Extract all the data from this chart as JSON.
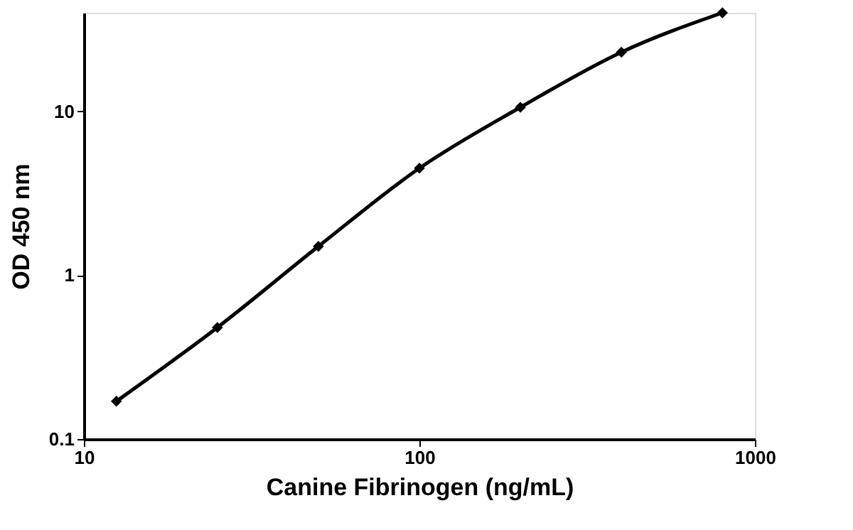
{
  "chart_data": {
    "type": "line",
    "xlabel": "Canine Fibrinogen (ng/mL)",
    "ylabel": "OD 450 nm",
    "log": "xy",
    "x": [
      12.5,
      25,
      50,
      100,
      200,
      400,
      800
    ],
    "series": [
      {
        "color": "#000000",
        "values": [
          0.17,
          0.48,
          1.5,
          4.5,
          10.6,
          23,
          40
        ]
      }
    ],
    "xlim": [
      10,
      1000
    ],
    "ylim": [
      0.1,
      40
    ],
    "xticks": [
      10,
      100,
      1000
    ],
    "yticks": [
      0.1,
      1,
      10
    ],
    "grid": false,
    "marker": "diamond",
    "line_style": "solid"
  }
}
